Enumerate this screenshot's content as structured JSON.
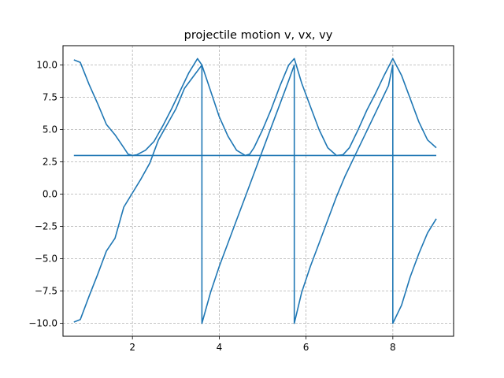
{
  "chart_data": {
    "type": "line",
    "title": "projectile motion v, vx, vy",
    "xlabel": "",
    "ylabel": "",
    "xlim": [
      0.4,
      9.4
    ],
    "ylim": [
      -11.0,
      11.5
    ],
    "xticks": [
      2,
      4,
      6,
      8
    ],
    "xtick_labels": [
      "2",
      "4",
      "6",
      "8"
    ],
    "yticks": [
      -10.0,
      -7.5,
      -5.0,
      -2.5,
      0.0,
      2.5,
      5.0,
      7.5,
      10.0
    ],
    "ytick_labels": [
      "−10.0",
      "−7.5",
      "−5.0",
      "−2.5",
      "0.0",
      "2.5",
      "5.0",
      "7.5",
      "10.0"
    ],
    "grid": true,
    "grid_style": "dashed",
    "legend": "none",
    "color": "#1f77b4",
    "series": [
      {
        "x": [
          0.65,
          0.8,
          1.0,
          1.2,
          1.4,
          1.6,
          1.8,
          1.9,
          2.0,
          2.1,
          2.3,
          2.5,
          2.7,
          2.9,
          3.1,
          3.3,
          3.5,
          3.6,
          3.8,
          4.0,
          4.2,
          4.4,
          4.6,
          4.7,
          4.8,
          5.0,
          5.2,
          5.4,
          5.6,
          5.73,
          5.9,
          6.1,
          6.3,
          6.5,
          6.7,
          6.85,
          7.0,
          7.2,
          7.4,
          7.6,
          7.8,
          8.0,
          8.2,
          8.4,
          8.6,
          8.8,
          9.0
        ],
        "values": [
          10.4,
          10.2,
          8.5,
          7.0,
          5.4,
          4.6,
          3.6,
          3.1,
          3.0,
          3.05,
          3.4,
          4.1,
          5.3,
          6.6,
          8.0,
          9.4,
          10.5,
          10.0,
          8.0,
          6.0,
          4.5,
          3.4,
          3.0,
          3.1,
          3.6,
          5.0,
          6.6,
          8.4,
          10.0,
          10.5,
          8.6,
          6.8,
          5.0,
          3.6,
          3.0,
          3.05,
          3.6,
          5.0,
          6.5,
          7.8,
          9.2,
          10.5,
          9.2,
          7.4,
          5.6,
          4.2,
          3.6
        ]
      },
      {
        "x": [
          0.65,
          9.0
        ],
        "values": [
          3.0,
          3.0
        ]
      },
      {
        "x": [
          0.65,
          0.8,
          1.0,
          1.2,
          1.4,
          1.6,
          1.8,
          2.0,
          2.2,
          2.4,
          2.6,
          2.8,
          3.0,
          3.2,
          3.4,
          3.6,
          3.6,
          3.8,
          4.0,
          4.2,
          4.4,
          4.6,
          4.8,
          5.0,
          5.2,
          5.4,
          5.6,
          5.73,
          5.73,
          5.9,
          6.1,
          6.3,
          6.5,
          6.7,
          6.9,
          7.1,
          7.3,
          7.5,
          7.7,
          7.9,
          8.0,
          8.0,
          8.2,
          8.4,
          8.6,
          8.8,
          9.0
        ],
        "values": [
          -9.9,
          -9.7,
          -7.9,
          -6.2,
          -4.4,
          -3.4,
          -1.0,
          0.1,
          1.2,
          2.4,
          4.2,
          5.4,
          6.6,
          8.2,
          9.1,
          10.0,
          -10.0,
          -7.6,
          -5.6,
          -3.8,
          -2.0,
          -0.2,
          1.6,
          3.4,
          5.2,
          7.0,
          8.8,
          10.0,
          -10.0,
          -7.6,
          -5.6,
          -3.8,
          -2.0,
          -0.2,
          1.4,
          2.8,
          4.2,
          5.6,
          7.0,
          8.4,
          10.0,
          -10.0,
          -8.6,
          -6.4,
          -4.6,
          -3.0,
          -1.9
        ]
      }
    ]
  }
}
